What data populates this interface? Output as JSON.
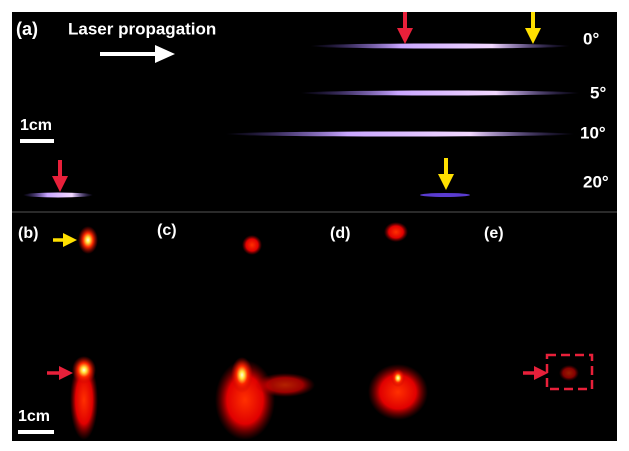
{
  "panel_a": {
    "label": "(a)",
    "annotation": "Laser propagation",
    "angles": [
      "0°",
      "5°",
      "10°",
      "20°"
    ],
    "scale_bar": "1cm"
  },
  "panels_bottom": {
    "labels": [
      "(b)",
      "(c)",
      "(d)",
      "(e)"
    ],
    "scale_bar": "1cm"
  }
}
